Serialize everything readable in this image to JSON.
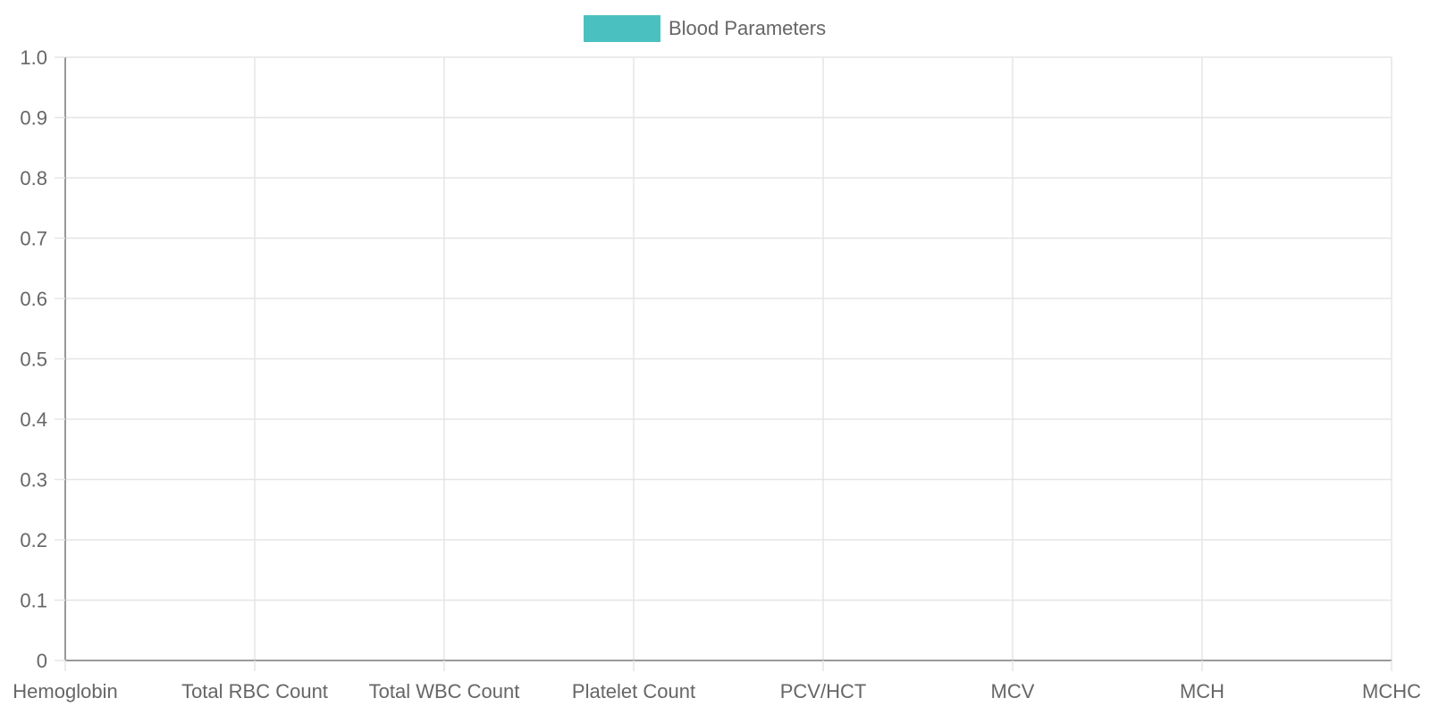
{
  "chart_data": {
    "type": "line",
    "categories": [
      "Hemoglobin",
      "Total RBC Count",
      "Total WBC Count",
      "Platelet Count",
      "PCV/HCT",
      "MCV",
      "MCH",
      "MCHC"
    ],
    "series": [
      {
        "name": "Blood Parameters",
        "values": [
          null,
          null,
          null,
          null,
          null,
          null,
          null,
          null
        ],
        "color": "#4bc0c0"
      }
    ],
    "title": "",
    "xlabel": "",
    "ylabel": "",
    "ylim": [
      0,
      1
    ],
    "yticks": [
      "0",
      "0.1",
      "0.2",
      "0.3",
      "0.4",
      "0.5",
      "0.6",
      "0.7",
      "0.8",
      "0.9",
      "1.0"
    ],
    "grid": true,
    "legend_position": "top-center"
  },
  "colors": {
    "grid": "#e5e5e5",
    "axis": "#999999",
    "text": "#666666"
  }
}
